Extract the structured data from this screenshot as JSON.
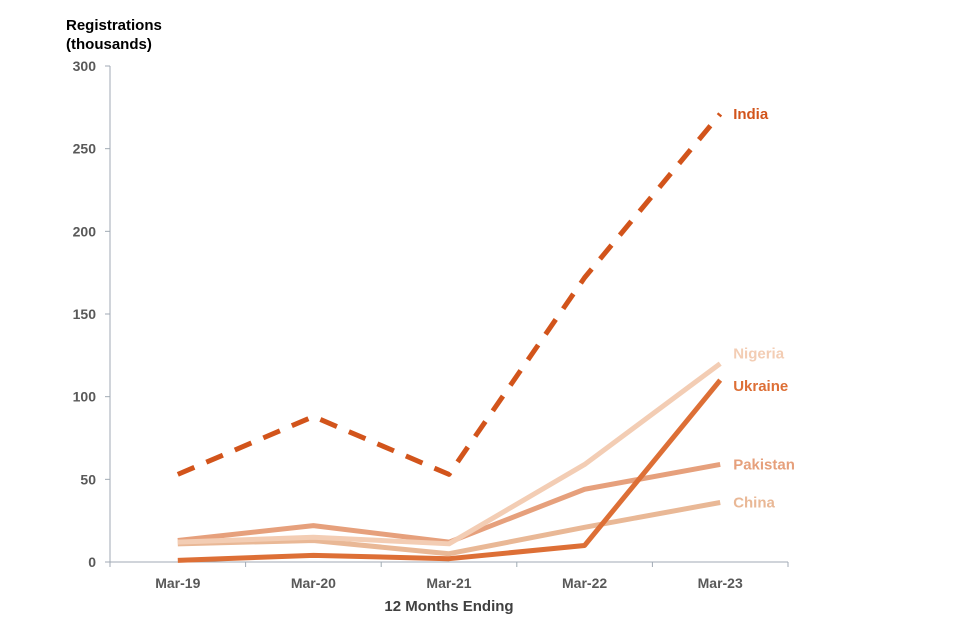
{
  "chart_data": {
    "type": "line",
    "ylabel_lines": [
      "Registrations",
      "(thousands)"
    ],
    "xlabel": "12 Months Ending",
    "categories": [
      "Mar-19",
      "Mar-20",
      "Mar-21",
      "Mar-22",
      "Mar-23"
    ],
    "ylim": [
      0,
      300
    ],
    "yticks": [
      0,
      50,
      100,
      150,
      200,
      250,
      300
    ],
    "grid": false,
    "series": [
      {
        "name": "China",
        "values": [
          11,
          13,
          5,
          21,
          36
        ],
        "color": "#e9b896",
        "dashed": false
      },
      {
        "name": "Pakistan",
        "values": [
          13,
          22,
          12,
          44,
          59
        ],
        "color": "#e6a07c",
        "dashed": false
      },
      {
        "name": "Nigeria",
        "values": [
          12,
          15,
          11,
          59,
          120
        ],
        "color": "#f3cdb4",
        "dashed": false
      },
      {
        "name": "Ukraine",
        "values": [
          1,
          4,
          2,
          10,
          110
        ],
        "color": "#dd6f36",
        "dashed": false
      },
      {
        "name": "India",
        "values": [
          53,
          88,
          53,
          172,
          271
        ],
        "color": "#d2541b",
        "dashed": true
      }
    ]
  }
}
